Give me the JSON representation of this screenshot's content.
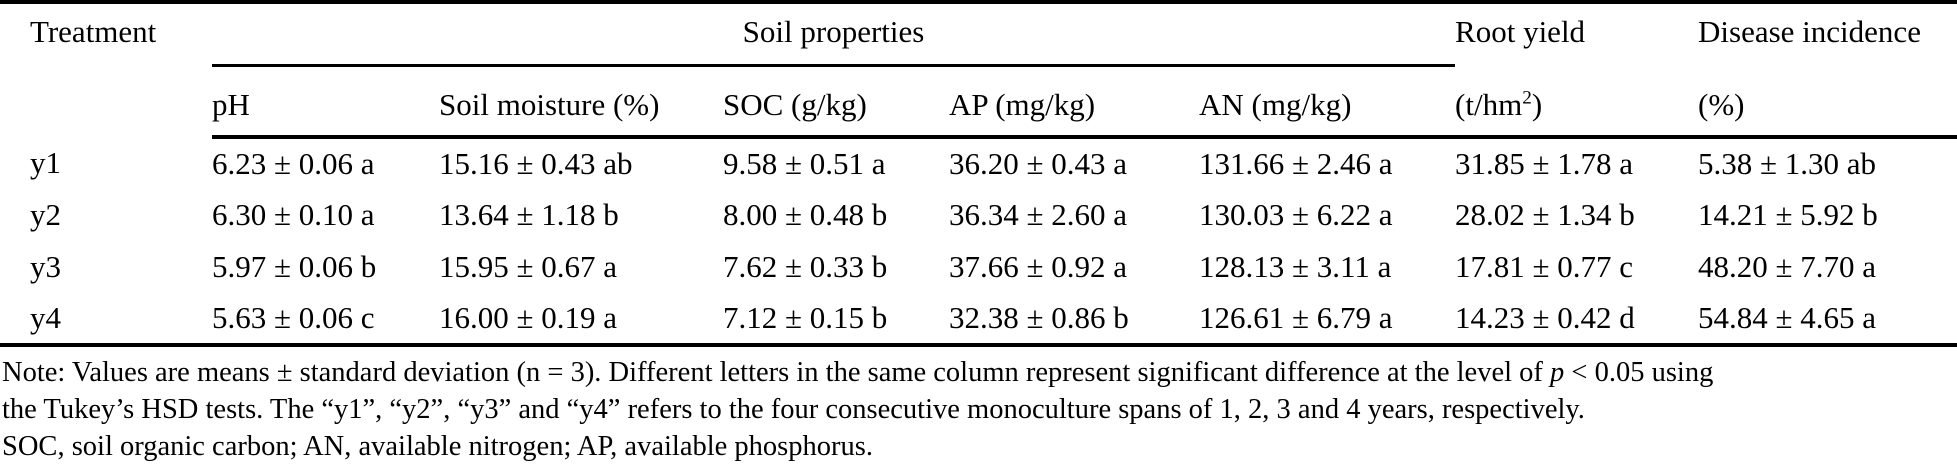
{
  "table": {
    "header": {
      "treatment": "Treatment",
      "soil_properties": "Soil properties",
      "root_yield": "Root yield",
      "disease_incidence": "Disease incidence"
    },
    "sub_headers": {
      "ph": "pH",
      "soil_moisture": "Soil moisture (%)",
      "soc": "SOC (g/kg)",
      "ap": "AP (mg/kg)",
      "an": "AN (mg/kg)",
      "root_yield_unit_base": "(t/hm",
      "root_yield_unit_sup": "2",
      "root_yield_unit_close": ")",
      "disease_incidence_unit": "(%)"
    },
    "column_keys": [
      "treatment",
      "ph",
      "soil_moisture",
      "soc",
      "ap",
      "an",
      "root_yield",
      "disease_incidence"
    ],
    "rows": [
      {
        "treatment": "y1",
        "ph": "6.23 ± 0.06 a",
        "soil_moisture": "15.16 ± 0.43 ab",
        "soc": "9.58 ± 0.51 a",
        "ap": "36.20 ± 0.43 a",
        "an": "131.66 ± 2.46 a",
        "root_yield": "31.85 ± 1.78 a",
        "disease_incidence": "5.38 ± 1.30 ab"
      },
      {
        "treatment": "y2",
        "ph": "6.30 ± 0.10 a",
        "soil_moisture": "13.64 ± 1.18 b",
        "soc": "8.00 ± 0.48 b",
        "ap": "36.34 ± 2.60 a",
        "an": "130.03 ± 6.22 a",
        "root_yield": "28.02 ± 1.34 b",
        "disease_incidence": "14.21 ± 5.92 b"
      },
      {
        "treatment": "y3",
        "ph": "5.97 ± 0.06 b",
        "soil_moisture": "15.95 ± 0.67 a",
        "soc": "7.62 ± 0.33 b",
        "ap": "37.66 ± 0.92 a",
        "an": "128.13 ± 3.11 a",
        "root_yield": "17.81 ± 0.77 c",
        "disease_incidence": "48.20 ± 7.70 a"
      },
      {
        "treatment": "y4",
        "ph": "5.63 ± 0.06 c",
        "soil_moisture": "16.00 ± 0.19 a",
        "soc": "7.12 ± 0.15 b",
        "ap": "32.38 ± 0.86 b",
        "an": "126.61 ± 6.79 a",
        "root_yield": "14.23 ± 0.42 d",
        "disease_incidence": "54.84 ± 4.65 a"
      }
    ]
  },
  "note": {
    "lines": [
      [
        {
          "t": "Note: Values are means ± standard deviation (n = 3). Different letters in the same column represent significant difference at the level of "
        },
        {
          "t": "p",
          "i": true
        },
        {
          "t": " < 0.05 using"
        }
      ],
      [
        {
          "t": "the Tukey’s HSD tests. The “y1”, “y2”, “y3” and “y4” refers to the four consecutive monoculture spans of 1, 2, 3 and 4 years, respectively."
        }
      ],
      [
        {
          "t": "SOC, soil organic carbon; AN, available nitrogen; AP, available phosphorus."
        }
      ]
    ]
  },
  "colors": {
    "text": "#000000",
    "background": "#ffffff",
    "rule": "#000000"
  }
}
